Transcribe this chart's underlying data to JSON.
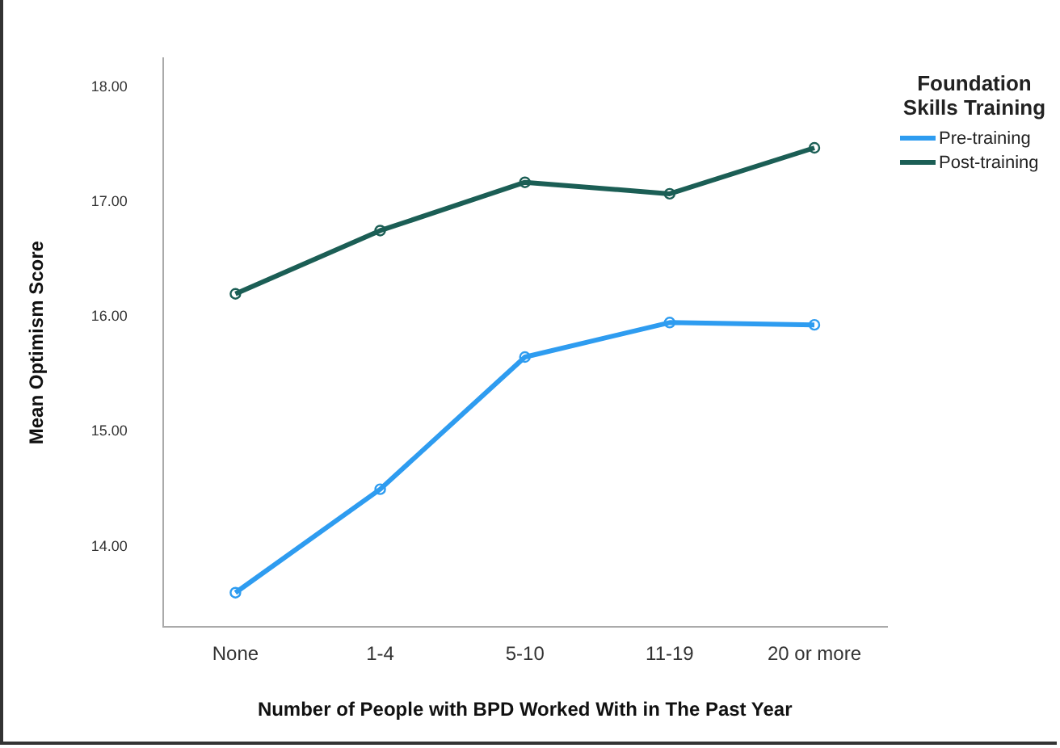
{
  "chart_data": {
    "type": "line",
    "xlabel": "Number of People with BPD Worked With in The Past Year",
    "ylabel": "Mean Optimism Score",
    "legend_title": "Foundation Skills Training",
    "categories": [
      "None",
      "1-4",
      "5-10",
      "11-19",
      "20 or more"
    ],
    "series": [
      {
        "name": "Pre-training",
        "color": "#2e9cf0",
        "values": [
          13.6,
          14.5,
          15.65,
          15.95,
          15.93
        ]
      },
      {
        "name": "Post-training",
        "color": "#1b5e55",
        "values": [
          16.2,
          16.75,
          17.17,
          17.07,
          17.47
        ]
      }
    ],
    "ylim": [
      13.3,
      18.25
    ],
    "yticks": [
      {
        "value": 14,
        "label": "14.00"
      },
      {
        "value": 15,
        "label": "15.00"
      },
      {
        "value": 16,
        "label": "16.00"
      },
      {
        "value": 17,
        "label": "17.00"
      },
      {
        "value": 18,
        "label": "18.00"
      }
    ],
    "grid": false,
    "legend": "top right",
    "marker": "circle",
    "line_style": "solid"
  }
}
